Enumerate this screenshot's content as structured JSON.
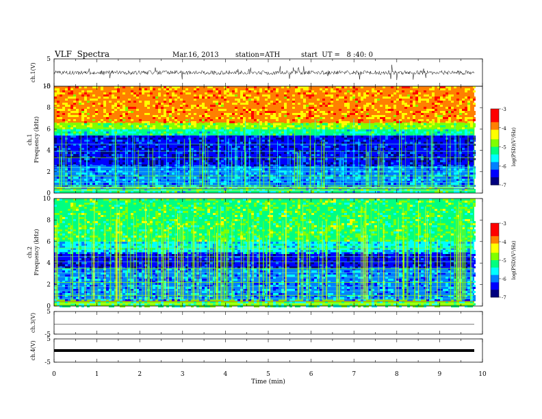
{
  "header": {
    "title": "VLF  Spectra",
    "date": "Mar.16, 2013",
    "station": "station=ATH",
    "start": "start  UT =   8 :40: 0"
  },
  "chart_data": [
    {
      "type": "line",
      "panel": "ch1-waveform",
      "ylabel": "ch.1(V)",
      "ylim": [
        -5,
        5
      ],
      "yticks": [
        "5",
        "-5"
      ],
      "x_range_min": [
        0,
        9.8
      ],
      "color": "#000000"
    },
    {
      "type": "heatmap",
      "panel": "ch1-spectrogram",
      "ylabel": "ch.1\nFrequency  (kHz)",
      "ylim": [
        0,
        10
      ],
      "yticks": [
        "0",
        "2",
        "4",
        "6",
        "8",
        "10"
      ],
      "colorbar": {
        "label": "log(PSD)(V²/Hz)",
        "range": [
          -7,
          -3
        ],
        "ticks": [
          "-3",
          "-4",
          "-5",
          "-6",
          "-7"
        ]
      },
      "bands_kHz": [
        [
          6.5,
          10,
          "red/yellow"
        ],
        [
          5.5,
          6.5,
          "yellow/green"
        ],
        [
          2.5,
          5.5,
          "dark blue"
        ],
        [
          0.5,
          2.5,
          "cyan with horizontal green lines"
        ],
        [
          0,
          0.5,
          "red/green lines"
        ]
      ]
    },
    {
      "type": "heatmap",
      "panel": "ch2-spectrogram",
      "ylabel": "ch.2\nFrequency  (kHz)",
      "ylim": [
        0,
        10
      ],
      "yticks": [
        "0",
        "2",
        "4",
        "6",
        "8",
        "10"
      ],
      "colorbar": {
        "label": "log(PSD)(V²/Hz)",
        "range": [
          -7,
          -3
        ],
        "ticks": [
          "-3",
          "-4",
          "-5",
          "-6",
          "-7"
        ]
      },
      "bands_kHz": [
        [
          6,
          10,
          "green with vertical streaks"
        ],
        [
          5,
          6,
          "cyan"
        ],
        [
          3.5,
          5,
          "dark blue"
        ],
        [
          0.5,
          3.5,
          "cyan/blue with horizontal lines"
        ],
        [
          0,
          0.5,
          "red/yellow lines"
        ]
      ]
    },
    {
      "type": "line",
      "panel": "ch3-waveform",
      "ylabel": "ch.3(V)",
      "ylim": [
        -5,
        5
      ],
      "yticks": [
        "5",
        "-5"
      ],
      "color": "#000000"
    },
    {
      "type": "line",
      "panel": "ch4-waveform",
      "ylabel": "ch.4(V)",
      "ylim": [
        -5,
        5
      ],
      "yticks": [
        "5",
        "-5"
      ],
      "color": "#000000"
    }
  ],
  "x_axis": {
    "label": "Time  (min)",
    "range": [
      0,
      10
    ],
    "ticks": [
      "0",
      "1",
      "2",
      "3",
      "4",
      "5",
      "6",
      "7",
      "8",
      "9",
      "10"
    ]
  },
  "colormap": [
    "#00007f",
    "#0000ff",
    "#0080ff",
    "#00ffff",
    "#00ff80",
    "#80ff00",
    "#ffff00",
    "#ff8000",
    "#ff0000",
    "#ff9999",
    "#ffffff"
  ]
}
